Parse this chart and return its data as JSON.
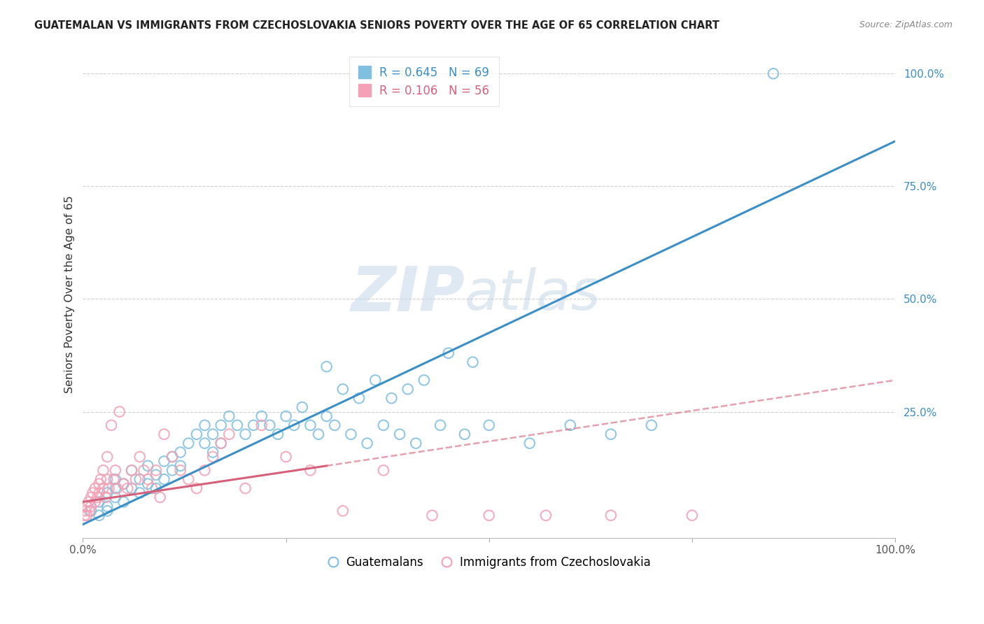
{
  "title": "GUATEMALAN VS IMMIGRANTS FROM CZECHOSLOVAKIA SENIORS POVERTY OVER THE AGE OF 65 CORRELATION CHART",
  "source": "Source: ZipAtlas.com",
  "ylabel": "Seniors Poverty Over the Age of 65",
  "xlim": [
    0,
    100
  ],
  "ylim": [
    -3,
    105
  ],
  "legend_r1": "R = 0.645",
  "legend_n1": "N = 69",
  "legend_r2": "R = 0.106",
  "legend_n2": "N = 56",
  "blue_color": "#7fbfdf",
  "blue_line_color": "#3a8fc7",
  "pink_color": "#f4a0b5",
  "pink_line_color": "#d6607a",
  "watermark_zip_color": "#c5d8ea",
  "watermark_atlas_color": "#b8cfe0",
  "blue_line_x0": 0,
  "blue_line_y0": 0,
  "blue_line_x1": 100,
  "blue_line_y1": 85,
  "pink_line_x0": 0,
  "pink_line_y0": 5,
  "pink_line_x1": 30,
  "pink_line_y1": 13,
  "pink_dash_x0": 30,
  "pink_dash_y0": 13,
  "pink_dash_x1": 100,
  "pink_dash_y1": 32,
  "blue_scatter_x": [
    1,
    2,
    2,
    3,
    3,
    3,
    4,
    4,
    4,
    5,
    5,
    6,
    6,
    7,
    7,
    8,
    8,
    9,
    9,
    10,
    10,
    11,
    11,
    12,
    12,
    13,
    14,
    15,
    15,
    16,
    16,
    17,
    17,
    18,
    19,
    20,
    21,
    22,
    23,
    24,
    25,
    26,
    27,
    28,
    29,
    30,
    31,
    33,
    35,
    37,
    39,
    41,
    44,
    47,
    50,
    55,
    60,
    65,
    70,
    30,
    32,
    34,
    36,
    38,
    40,
    42,
    45,
    48,
    85
  ],
  "blue_scatter_y": [
    3,
    5,
    2,
    7,
    4,
    3,
    8,
    10,
    6,
    9,
    5,
    12,
    8,
    10,
    7,
    13,
    9,
    11,
    8,
    14,
    10,
    15,
    12,
    16,
    13,
    18,
    20,
    22,
    18,
    20,
    16,
    22,
    18,
    24,
    22,
    20,
    22,
    24,
    22,
    20,
    24,
    22,
    26,
    22,
    20,
    24,
    22,
    20,
    18,
    22,
    20,
    18,
    22,
    20,
    22,
    18,
    22,
    20,
    22,
    35,
    30,
    28,
    32,
    28,
    30,
    32,
    38,
    36,
    100
  ],
  "pink_scatter_x": [
    0.2,
    0.3,
    0.5,
    0.5,
    0.7,
    0.8,
    1.0,
    1.0,
    1.2,
    1.5,
    1.5,
    1.8,
    2.0,
    2.0,
    2.2,
    2.5,
    2.5,
    2.8,
    3.0,
    3.0,
    3.2,
    3.5,
    3.8,
    4.0,
    4.2,
    4.5,
    5.0,
    5.5,
    6.0,
    6.5,
    7.0,
    7.5,
    8.0,
    8.5,
    9.0,
    9.5,
    10.0,
    11.0,
    12.0,
    13.0,
    14.0,
    15.0,
    16.0,
    17.0,
    18.0,
    20.0,
    22.0,
    25.0,
    28.0,
    32.0,
    37.0,
    43.0,
    50.0,
    57.0,
    65.0,
    75.0
  ],
  "pink_scatter_y": [
    2,
    3,
    4,
    2,
    5,
    3,
    6,
    4,
    7,
    8,
    5,
    6,
    9,
    7,
    10,
    8,
    12,
    6,
    15,
    10,
    8,
    22,
    10,
    12,
    8,
    25,
    9,
    8,
    12,
    10,
    15,
    12,
    10,
    8,
    12,
    6,
    20,
    15,
    12,
    10,
    8,
    12,
    15,
    18,
    20,
    8,
    22,
    15,
    12,
    3,
    12,
    2,
    2,
    2,
    2,
    2
  ]
}
